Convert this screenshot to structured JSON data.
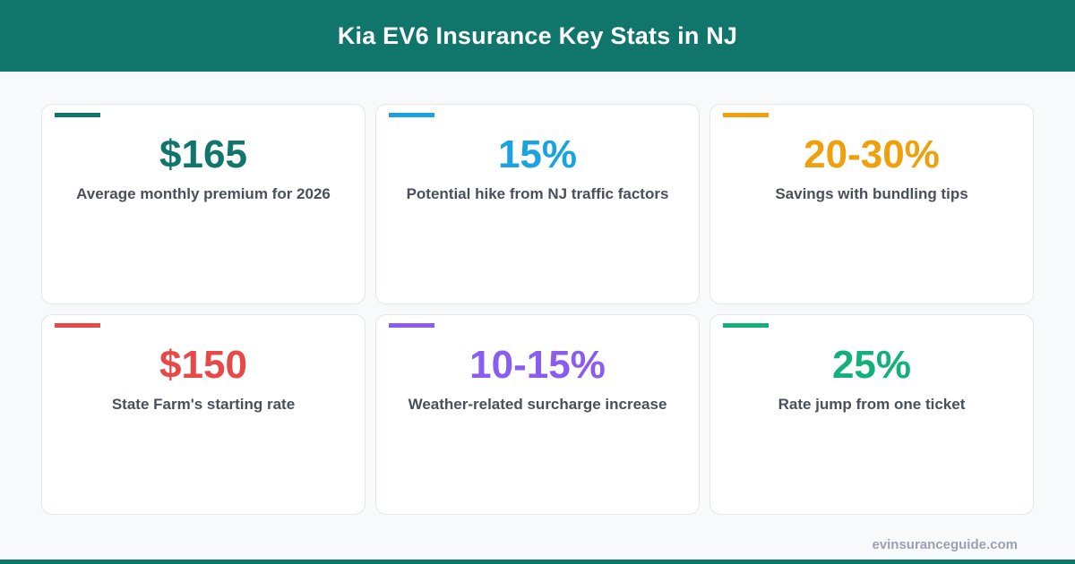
{
  "header": {
    "title": "Kia EV6 Insurance Key Stats in NJ"
  },
  "cards": [
    {
      "value": "$165",
      "label": "Average monthly premium for 2026",
      "color": "#10766c"
    },
    {
      "value": "15%",
      "label": "Potential hike from NJ traffic factors",
      "color": "#1aa3e0"
    },
    {
      "value": "20-30%",
      "label": "Savings with bundling tips",
      "color": "#f0a00c"
    },
    {
      "value": "$150",
      "label": "State Farm's starting rate",
      "color": "#e84848"
    },
    {
      "value": "10-15%",
      "label": "Weather-related surcharge increase",
      "color": "#8b5cf0"
    },
    {
      "value": "25%",
      "label": "Rate jump from one ticket",
      "color": "#14b07a"
    }
  ],
  "footer": {
    "site": "evinsuranceguide.com"
  }
}
